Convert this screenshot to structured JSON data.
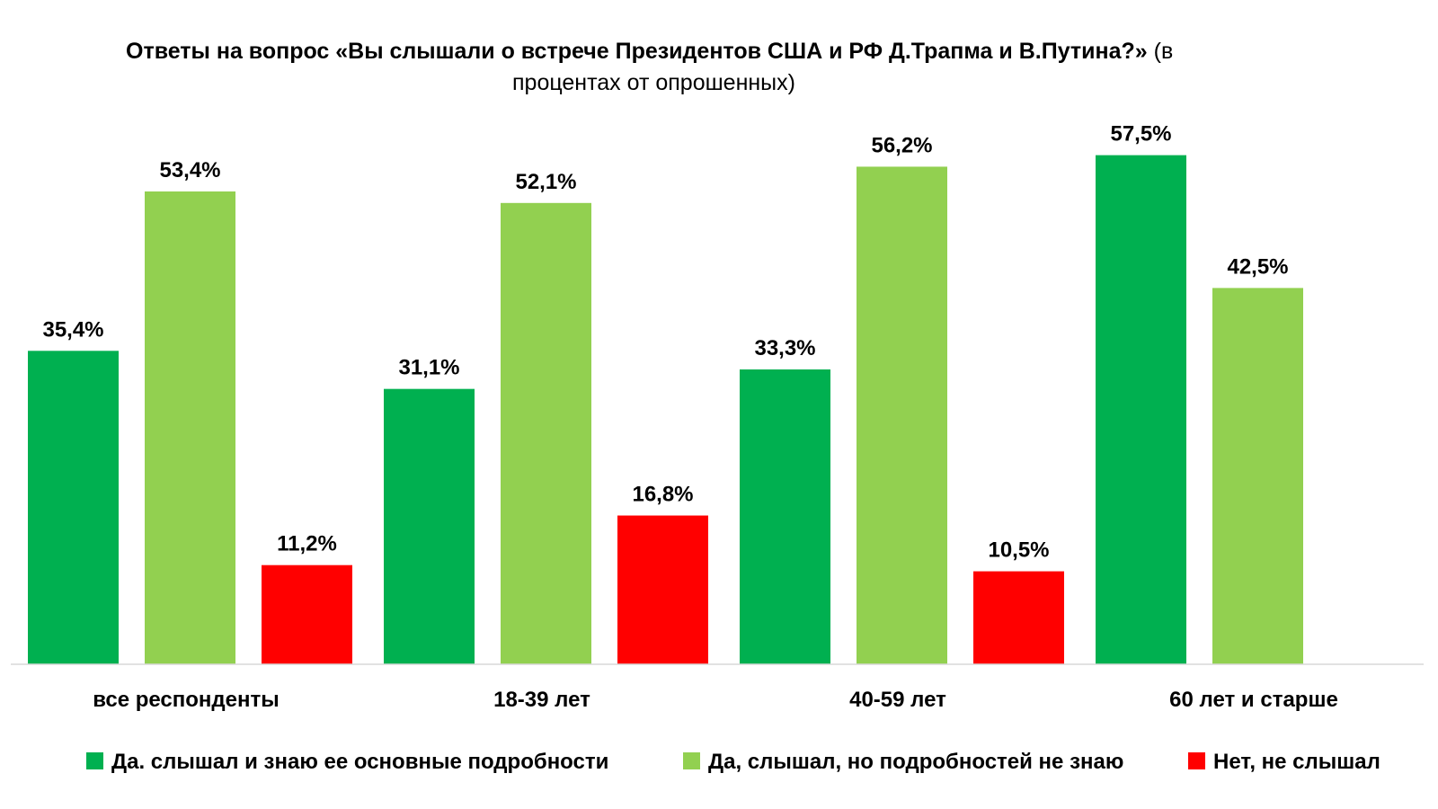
{
  "title": {
    "bold_part": "Ответы на вопрос «Вы слышали о встрече Президентов США и РФ Д.Трапма и В.Путина?»",
    "normal_part_line1": "(в",
    "normal_part_line2": "процентах от опрошенных)"
  },
  "colors": {
    "series_1": "#00b050",
    "series_2": "#92d050",
    "series_3": "#ff0000",
    "axis": "#d9d9d9",
    "background": "#ffffff"
  },
  "chart_data": {
    "type": "bar",
    "categories": [
      "все респонденты",
      "18-39 лет",
      "40-59 лет",
      "60 лет и старше"
    ],
    "series": [
      {
        "name": "Да. слышал и знаю ее основные подробности",
        "values": [
          35.4,
          31.1,
          33.3,
          57.5
        ],
        "labels": [
          "35,4%",
          "31,1%",
          "33,3%",
          "57,5%"
        ]
      },
      {
        "name": "Да, слышал, но подробностей не знаю",
        "values": [
          53.4,
          52.1,
          56.2,
          42.5
        ],
        "labels": [
          "53,4%",
          "52,1%",
          "56,2%",
          "42,5%"
        ]
      },
      {
        "name": "Нет, не слышал",
        "values": [
          11.2,
          16.8,
          10.5,
          null
        ],
        "labels": [
          "11,2%",
          "16,8%",
          "10,5%",
          ""
        ]
      }
    ],
    "ylim": [
      0,
      60
    ],
    "grid": false,
    "legend_position": "bottom"
  }
}
